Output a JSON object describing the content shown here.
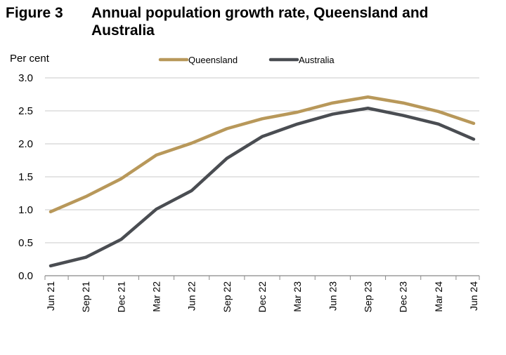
{
  "figure_label": "Figure 3",
  "chart_data": {
    "type": "line",
    "title": "Annual population growth rate, Queensland and Australia",
    "ylabel": "Per cent",
    "xlabel": "",
    "ylim": [
      0,
      3.0
    ],
    "yticks": [
      "0.0",
      "0.5",
      "1.0",
      "1.5",
      "2.0",
      "2.5",
      "3.0"
    ],
    "grid": true,
    "legend": "top-center",
    "categories": [
      "Jun 21",
      "Sep 21",
      "Dec 21",
      "Mar 22",
      "Jun 22",
      "Sep 22",
      "Dec 22",
      "Mar 23",
      "Jun 23",
      "Sep 23",
      "Dec 23",
      "Mar 24",
      "Jun 24"
    ],
    "series": [
      {
        "name": "Queensland",
        "color": "#B8985A",
        "values": [
          0.97,
          1.2,
          1.47,
          1.83,
          2.01,
          2.23,
          2.38,
          2.48,
          2.62,
          2.71,
          2.62,
          2.49,
          2.31
        ]
      },
      {
        "name": "Australia",
        "color": "#4A4D52",
        "values": [
          0.15,
          0.28,
          0.55,
          1.01,
          1.29,
          1.78,
          2.11,
          2.3,
          2.45,
          2.54,
          2.43,
          2.3,
          2.07
        ]
      }
    ]
  }
}
